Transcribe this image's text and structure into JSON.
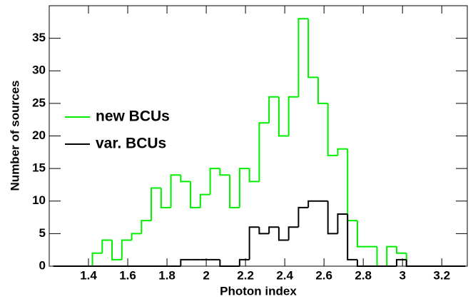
{
  "chart_data": {
    "type": "histogram",
    "xlabel": "Photon index",
    "ylabel": "Number of sources",
    "bins": [
      1.22,
      1.27,
      1.32,
      1.37,
      1.42,
      1.47,
      1.52,
      1.57,
      1.62,
      1.67,
      1.72,
      1.77,
      1.82,
      1.87,
      1.92,
      1.97,
      2.02,
      2.07,
      2.12,
      2.17,
      2.22,
      2.27,
      2.32,
      2.37,
      2.42,
      2.47,
      2.52,
      2.57,
      2.62,
      2.67,
      2.72,
      2.77,
      2.82,
      2.87,
      2.92,
      2.97,
      3.02,
      3.07,
      3.12,
      3.17,
      3.22,
      3.27,
      3.32
    ],
    "series": [
      {
        "name": "new BCUs",
        "color": "#00ee00",
        "values": [
          0,
          0,
          0,
          0,
          2,
          4,
          1,
          4,
          5,
          7,
          12,
          9,
          14,
          13,
          9,
          11,
          15,
          14,
          9,
          15,
          13,
          22,
          26,
          20,
          26,
          38,
          29,
          25,
          17,
          18,
          7,
          3,
          3,
          0,
          3,
          2,
          0,
          0,
          0,
          0,
          0,
          0
        ]
      },
      {
        "name": "var. BCUs",
        "color": "#000000",
        "values": [
          0,
          0,
          0,
          0,
          0,
          0,
          0,
          0,
          0,
          0,
          0,
          0,
          0,
          1,
          1,
          1,
          1,
          0,
          0,
          1,
          6,
          5,
          6,
          4,
          6,
          9,
          10,
          10,
          5,
          8,
          1,
          0,
          0,
          0,
          0,
          1,
          0,
          0,
          0,
          0,
          0,
          0
        ]
      }
    ],
    "xlim": [
      1.2,
      3.33
    ],
    "ylim": [
      0,
      40
    ],
    "xticks": [
      1.4,
      1.6,
      1.8,
      2,
      2.2,
      2.4,
      2.6,
      2.8,
      3,
      3.2
    ],
    "yticks": [
      0,
      5,
      10,
      15,
      20,
      25,
      30,
      35
    ],
    "legend": "left"
  }
}
